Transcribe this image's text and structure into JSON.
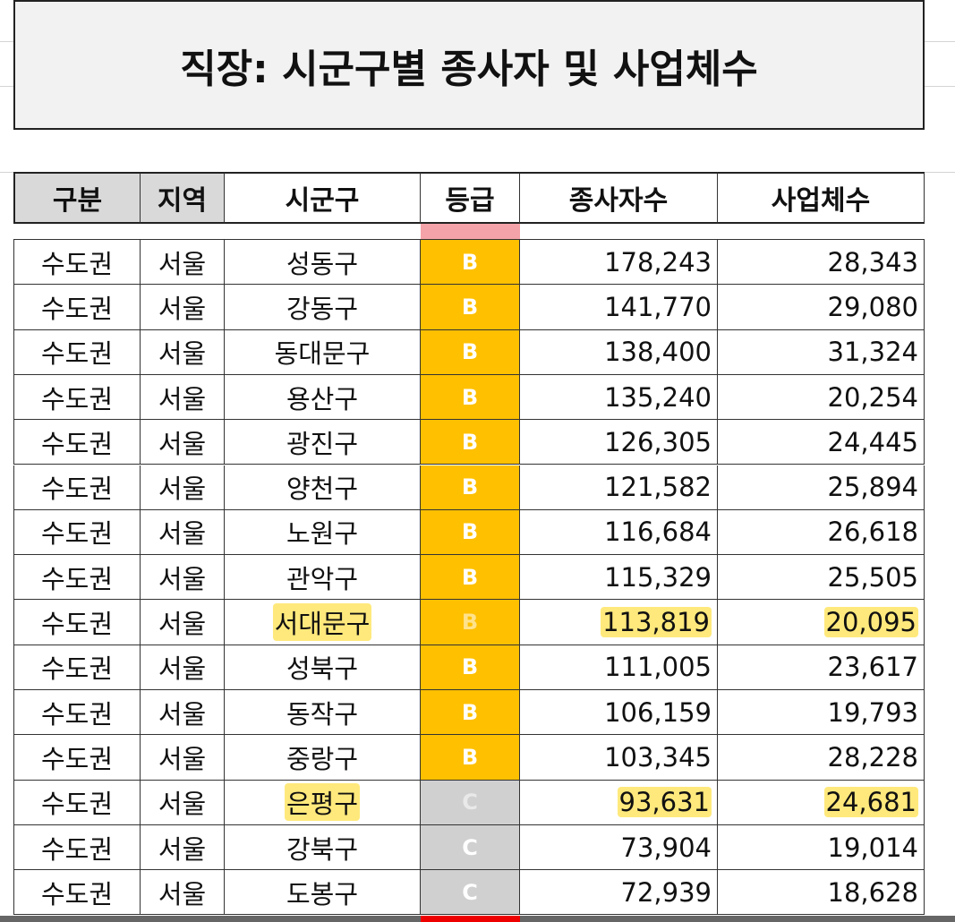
{
  "header": {
    "title": "직장: 시군구별 종사자 및 사업체수"
  },
  "table": {
    "columns": [
      "구분",
      "지역",
      "시군구",
      "등급",
      "종사자수",
      "사업체수"
    ],
    "rows": [
      {
        "cells": [
          "수도권",
          "서울",
          "성동구",
          "B",
          "178,243",
          "28,343"
        ]
      },
      {
        "cells": [
          "수도권",
          "서울",
          "강동구",
          "B",
          "141,770",
          "29,080"
        ]
      },
      {
        "cells": [
          "수도권",
          "서울",
          "동대문구",
          "B",
          "138,400",
          "31,324"
        ]
      },
      {
        "cells": [
          "수도권",
          "서울",
          "용산구",
          "B",
          "135,240",
          "20,254"
        ]
      },
      {
        "cells": [
          "수도권",
          "서울",
          "광진구",
          "B",
          "126,305",
          "24,445"
        ]
      },
      {
        "cells": [
          "수도권",
          "서울",
          "양천구",
          "B",
          "121,582",
          "25,894"
        ]
      },
      {
        "cells": [
          "수도권",
          "서울",
          "노원구",
          "B",
          "116,684",
          "26,618"
        ]
      },
      {
        "cells": [
          "수도권",
          "서울",
          "관악구",
          "B",
          "115,329",
          "25,505"
        ]
      },
      {
        "cells": [
          "수도권",
          "서울",
          "서대문구",
          "B",
          "113,819",
          "20,095"
        ],
        "highlighted": true
      },
      {
        "cells": [
          "수도권",
          "서울",
          "성북구",
          "B",
          "111,005",
          "23,617"
        ]
      },
      {
        "cells": [
          "수도권",
          "서울",
          "동작구",
          "B",
          "106,159",
          "19,793"
        ]
      },
      {
        "cells": [
          "수도권",
          "서울",
          "중랑구",
          "B",
          "103,345",
          "28,228"
        ]
      },
      {
        "cells": [
          "수도권",
          "서울",
          "은평구",
          "C",
          "93,631",
          "24,681"
        ],
        "highlighted": true
      },
      {
        "cells": [
          "수도권",
          "서울",
          "강북구",
          "C",
          "73,904",
          "19,014"
        ]
      },
      {
        "cells": [
          "수도권",
          "서울",
          "도봉구",
          "C",
          "72,939",
          "18,628"
        ]
      }
    ],
    "grade_colors": {
      "B": "#ffc000",
      "C": "#d0d0d0"
    }
  }
}
